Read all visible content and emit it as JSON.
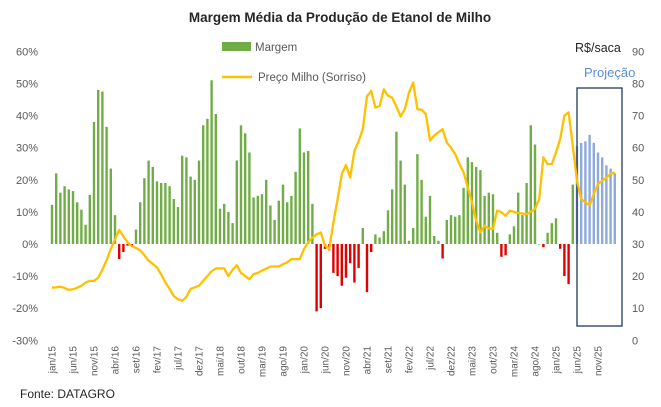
{
  "chart_data": {
    "type": "bar+line",
    "title": "Margem Média da Produção de Etanol de Milho",
    "source": "Fonte:  DATAGRO",
    "right_axis_label": "R$/saca",
    "projection_label": "Projeção",
    "legend": {
      "placement": "top-center",
      "entries": [
        "Margem",
        "Preço Milho (Sorriso)"
      ]
    },
    "colors": {
      "margin_positive": "#70ad47",
      "margin_negative": "#e00000",
      "projection": "#8eaadb",
      "corn_line": "#ffc000",
      "projection_box": "#1f3864",
      "projection_text": "#5b8fd0"
    },
    "left_axis": {
      "ylim": [
        -30,
        60
      ],
      "ticks": [
        "-30%",
        "-20%",
        "-10%",
        "0%",
        "10%",
        "20%",
        "30%",
        "40%",
        "50%",
        "60%"
      ]
    },
    "right_axis": {
      "ylim": [
        0,
        90
      ],
      "ticks": [
        "0",
        "10",
        "20",
        "30",
        "40",
        "50",
        "60",
        "70",
        "80",
        "90"
      ]
    },
    "x_start": "jan/15",
    "x_end": "mar/26",
    "x_tick_labels": [
      "jan/15",
      "jun/15",
      "nov/15",
      "abr/16",
      "set/16",
      "fev/17",
      "jul/17",
      "dez/17",
      "mai/18",
      "out/18",
      "mar/19",
      "ago/19",
      "jan/20",
      "jun/20",
      "nov/20",
      "abr/21",
      "set/21",
      "fev/22",
      "jul/22",
      "dez/22",
      "mai/23",
      "out/23",
      "mar/24",
      "ago/24",
      "jan/25",
      "jun/25",
      "nov/25"
    ],
    "projection_start": "jun/25",
    "series": [
      {
        "name": "Margem",
        "type": "bar",
        "unit": "%",
        "values": [
          12.2,
          22,
          16,
          18,
          17,
          16.5,
          13,
          10.7,
          6,
          15.3,
          38,
          48,
          47.5,
          36.5,
          23.5,
          9,
          -4.7,
          -2.5,
          -0.5,
          -0.5,
          4.5,
          13,
          20.5,
          26,
          24,
          19.5,
          19,
          19,
          18,
          14,
          11.5,
          27.5,
          27,
          21,
          20,
          26,
          37,
          39,
          51,
          40.5,
          11,
          12.5,
          10,
          6.5,
          26,
          37,
          34.5,
          28.5,
          14.5,
          15,
          15.5,
          20,
          12,
          7.5,
          13.5,
          18.5,
          13,
          15,
          22.5,
          36,
          28.5,
          29,
          12.5,
          -21,
          -20,
          -1.5,
          -2,
          -9,
          -10,
          -13,
          -10.5,
          -6,
          -12,
          -7.5,
          5,
          -15,
          -2.5,
          3,
          2,
          4,
          10.5,
          17,
          35,
          26,
          18.5,
          1,
          5,
          28,
          20,
          8.5,
          15,
          2.5,
          1,
          -4.5,
          7.5,
          9,
          8.5,
          9,
          17.5,
          27,
          25.5,
          24,
          23,
          15,
          16,
          15.5,
          3.5,
          -4,
          -3.5,
          3,
          5.5,
          16,
          9,
          19,
          37,
          31,
          0,
          -1,
          3.5,
          6.5,
          8,
          -1.5,
          -10,
          -12.5,
          18.5,
          30.5,
          31.5,
          32,
          34,
          31.5,
          28.5,
          27,
          24.5,
          23.5,
          22
        ]
      },
      {
        "name": "Preço Milho (Sorriso)",
        "type": "line",
        "unit": "R$/saca",
        "axis": "right",
        "values": [
          16.4,
          16.5,
          16.7,
          16.3,
          15.7,
          15.9,
          16.4,
          17,
          18,
          18.5,
          18.5,
          19.5,
          22,
          25,
          28.4,
          31.5,
          34.4,
          32.4,
          30.5,
          29.3,
          28.8,
          28,
          26.5,
          24.8,
          23.8,
          22.7,
          20.5,
          18,
          16,
          13.8,
          12.8,
          12.3,
          13.5,
          16,
          16.5,
          17,
          18.5,
          20,
          21.5,
          22.4,
          22.4,
          22.4,
          20,
          22,
          23.4,
          21,
          20,
          19,
          20.6,
          21,
          21.7,
          22.3,
          23,
          23,
          23,
          23.7,
          24.3,
          25.3,
          25.3,
          25.3,
          28.4,
          30.5,
          32,
          33,
          33.6,
          29.5,
          28.4,
          36.7,
          44,
          51.8,
          54.6,
          50.7,
          59,
          62,
          65.8,
          76,
          77.7,
          72.5,
          73,
          78.2,
          76.2,
          75.6,
          72.8,
          69.7,
          72,
          77.2,
          80.3,
          72,
          71.8,
          70.5,
          62.2,
          63.8,
          64.8,
          65.8,
          61.6,
          60,
          58,
          54.9,
          52.3,
          47.6,
          43,
          37.3,
          33.6,
          35.7,
          34.9,
          34.7,
          40.4,
          39.9,
          38.8,
          40.4,
          40,
          39.6,
          39.5,
          39.3,
          40,
          40.9,
          44,
          57,
          54.9,
          54.9,
          58.5,
          62.7,
          70,
          71,
          60.6,
          49.7,
          44,
          43,
          42,
          45.6,
          48.7,
          49.7,
          50.7,
          51.8,
          52.3
        ]
      }
    ]
  }
}
